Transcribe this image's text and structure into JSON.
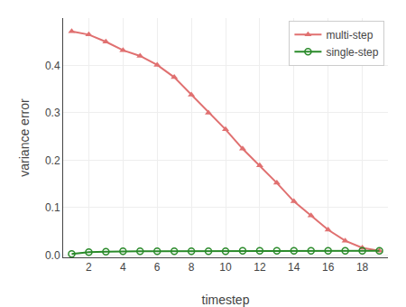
{
  "chart_data": {
    "type": "line",
    "x_label": "timestep",
    "y_label": "variance error",
    "series": [
      {
        "name": "multi-step",
        "color": "#e07070",
        "marker": "triangle-up",
        "x": [
          1,
          2,
          3,
          4,
          5,
          6,
          7,
          8,
          9,
          10,
          11,
          12,
          13,
          14,
          15,
          16,
          17,
          18,
          19
        ],
        "values": [
          0.472,
          0.465,
          0.45,
          0.432,
          0.42,
          0.401,
          0.375,
          0.338,
          0.3,
          0.265,
          0.224,
          0.189,
          0.152,
          0.113,
          0.083,
          0.053,
          0.03,
          0.015,
          0.009
        ]
      },
      {
        "name": "single-step",
        "color": "#2a8a2a",
        "marker": "circle-open",
        "x": [
          1,
          2,
          3,
          4,
          5,
          6,
          7,
          8,
          9,
          10,
          11,
          12,
          13,
          14,
          15,
          16,
          17,
          18,
          19
        ],
        "values": [
          0.002,
          0.006,
          0.007,
          0.008,
          0.008,
          0.008,
          0.008,
          0.008,
          0.008,
          0.008,
          0.009,
          0.009,
          0.009,
          0.009,
          0.009,
          0.009,
          0.009,
          0.009,
          0.009
        ]
      }
    ],
    "xlim": [
      0.5,
      19.5
    ],
    "ylim": [
      -0.005,
      0.5
    ],
    "xticks": [
      2,
      4,
      6,
      8,
      10,
      12,
      14,
      16,
      18
    ],
    "yticks": [
      {
        "value": 0.0,
        "label": "0.0"
      },
      0.1,
      0.2,
      0.3,
      0.4
    ],
    "grid": true,
    "legend": "upper right"
  }
}
